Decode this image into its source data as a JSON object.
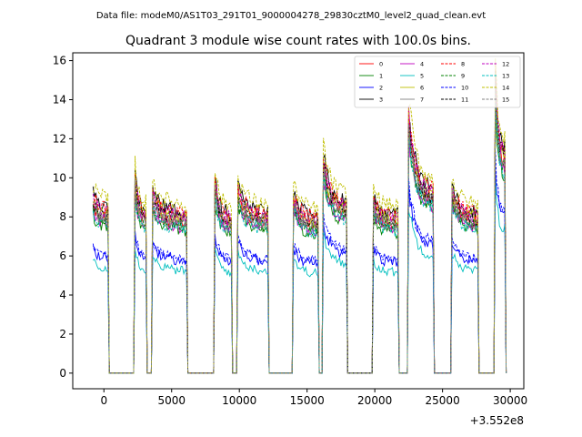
{
  "chart_data": {
    "type": "line",
    "suptitle": "Data file: modeM0/AS1T03_291T01_9000004278_29830cztM0_level2_quad_clean.evt",
    "title": "Quadrant 3 module wise count rates with 100.0s bins.",
    "xlabel": "",
    "ylabel": "",
    "x_offset_label": "+3.552e8",
    "xlim": [
      -2300,
      31000
    ],
    "ylim": [
      -0.8,
      16.4
    ],
    "xticks": [
      0,
      5000,
      10000,
      15000,
      20000,
      25000,
      30000
    ],
    "xtick_labels": [
      "0",
      "5000",
      "10000",
      "15000",
      "20000",
      "25000",
      "30000"
    ],
    "yticks": [
      0,
      2,
      4,
      6,
      8,
      10,
      12,
      14,
      16
    ],
    "ytick_labels": [
      "0",
      "2",
      "4",
      "6",
      "8",
      "10",
      "12",
      "14",
      "16"
    ],
    "bin_width_s": 100,
    "legend_position": "upper right",
    "segments": [
      {
        "start": -800,
        "end": 300,
        "base": 8.2,
        "peak": 8.8
      },
      {
        "start": 2300,
        "end": 3100,
        "base": 8.0,
        "peak": 9.8
      },
      {
        "start": 3600,
        "end": 6100,
        "base": 7.9,
        "peak": 9.0
      },
      {
        "start": 8200,
        "end": 9400,
        "base": 7.8,
        "peak": 9.6
      },
      {
        "start": 9900,
        "end": 12100,
        "base": 7.9,
        "peak": 9.2
      },
      {
        "start": 14000,
        "end": 15800,
        "base": 7.7,
        "peak": 8.9
      },
      {
        "start": 16200,
        "end": 17900,
        "base": 8.4,
        "peak": 10.8
      },
      {
        "start": 19900,
        "end": 21700,
        "base": 7.8,
        "peak": 8.7
      },
      {
        "start": 22500,
        "end": 24300,
        "base": 9.0,
        "peak": 13.0
      },
      {
        "start": 25700,
        "end": 27600,
        "base": 7.9,
        "peak": 9.3
      },
      {
        "start": 28900,
        "end": 29600,
        "base": 11.0,
        "peak": 14.8
      }
    ],
    "series": [
      {
        "name": "0",
        "color": "#ff0000",
        "dashed": false,
        "scale": 0.97
      },
      {
        "name": "1",
        "color": "#008000",
        "dashed": false,
        "scale": 0.92
      },
      {
        "name": "2",
        "color": "#0000ff",
        "dashed": false,
        "scale": 0.72
      },
      {
        "name": "3",
        "color": "#000000",
        "dashed": false,
        "scale": 1.04
      },
      {
        "name": "4",
        "color": "#bf00bf",
        "dashed": false,
        "scale": 0.94
      },
      {
        "name": "5",
        "color": "#00bfbf",
        "dashed": false,
        "scale": 0.66
      },
      {
        "name": "6",
        "color": "#bfbf00",
        "dashed": false,
        "scale": 1.0
      },
      {
        "name": "7",
        "color": "#808080",
        "dashed": false,
        "scale": 0.96
      },
      {
        "name": "8",
        "color": "#ff0000",
        "dashed": true,
        "scale": 1.03
      },
      {
        "name": "9",
        "color": "#008000",
        "dashed": true,
        "scale": 0.95
      },
      {
        "name": "10",
        "color": "#0000ff",
        "dashed": true,
        "scale": 0.74
      },
      {
        "name": "11",
        "color": "#000000",
        "dashed": true,
        "scale": 0.99
      },
      {
        "name": "12",
        "color": "#bf00bf",
        "dashed": true,
        "scale": 1.01
      },
      {
        "name": "13",
        "color": "#00bfbf",
        "dashed": true,
        "scale": 0.93
      },
      {
        "name": "14",
        "color": "#bfbf00",
        "dashed": true,
        "scale": 1.09
      },
      {
        "name": "15",
        "color": "#808080",
        "dashed": true,
        "scale": 0.98
      }
    ]
  }
}
